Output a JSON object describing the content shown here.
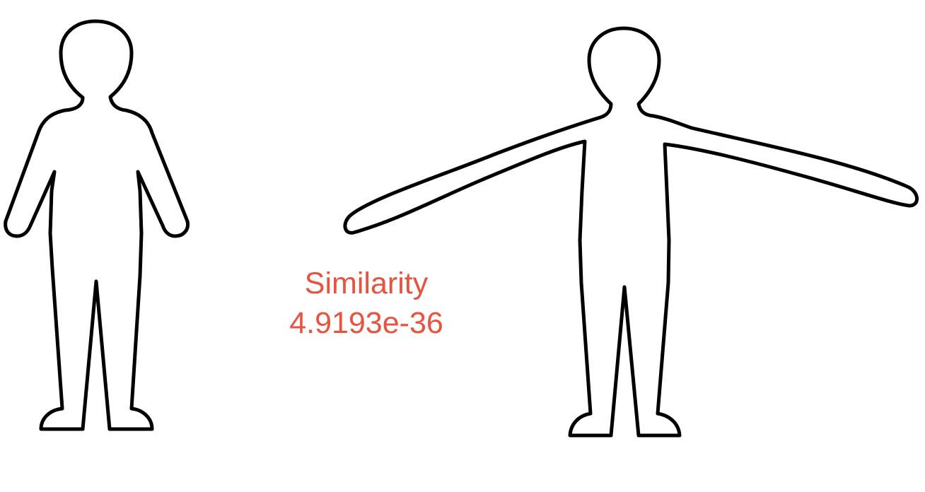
{
  "comparison": {
    "label": "Similarity",
    "value": "4.9193e-36",
    "label_color": "#e8533f"
  },
  "figures": [
    {
      "pose": "arms-down"
    },
    {
      "pose": "arms-outstretched"
    }
  ]
}
